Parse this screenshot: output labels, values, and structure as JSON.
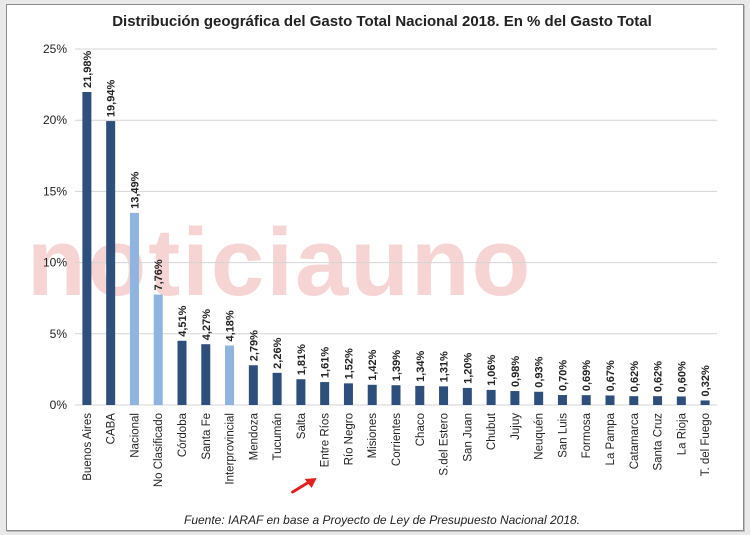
{
  "watermark": "noticiauno",
  "chart_data": {
    "type": "bar",
    "title": "Distribución geográfica del Gasto Total Nacional 2018. En % del Gasto Total",
    "source": "Fuente: IARAF en base a Proyecto de Ley de Presupuesto Nacional 2018.",
    "xlabel": "",
    "ylabel": "",
    "ylim": [
      0,
      25
    ],
    "yticks": [
      "0%",
      "5%",
      "10%",
      "15%",
      "20%",
      "25%"
    ],
    "grid": true,
    "categories": [
      "Buenos Aires",
      "CABA",
      "Nacional",
      "No Clasificado",
      "Córdoba",
      "Santa Fe",
      "Interprovincial",
      "Mendoza",
      "Tucumán",
      "Salta",
      "Entre Ríos",
      "Río Negro",
      "Misiones",
      "Corrientes",
      "Chaco",
      "S.del Estero",
      "San Juan",
      "Chubut",
      "Jujuy",
      "Neuquén",
      "San Luis",
      "Formosa",
      "La Pampa",
      "Catamarca",
      "Santa Cruz",
      "La Rioja",
      "T. del Fuego"
    ],
    "values": [
      21.98,
      19.94,
      13.49,
      7.76,
      4.51,
      4.27,
      4.18,
      2.79,
      2.26,
      1.81,
      1.61,
      1.52,
      1.42,
      1.39,
      1.34,
      1.31,
      1.2,
      1.06,
      0.98,
      0.93,
      0.7,
      0.69,
      0.67,
      0.62,
      0.62,
      0.6,
      0.32
    ],
    "value_labels": [
      "21,98%",
      "19,94%",
      "13,49%",
      "7,76%",
      "4,51%",
      "4,27%",
      "4,18%",
      "2,79%",
      "2,26%",
      "1,81%",
      "1,61%",
      "1,52%",
      "1,42%",
      "1,39%",
      "1,34%",
      "1,31%",
      "1,20%",
      "1,06%",
      "0,98%",
      "0,93%",
      "0,70%",
      "0,69%",
      "0,67%",
      "0,62%",
      "0,62%",
      "0,60%",
      "0,32%"
    ],
    "light_categories": [
      "Nacional",
      "No Clasificado",
      "Interprovincial"
    ],
    "highlighted_category": "Entre Ríos",
    "colors": {
      "dark": "#2e4f7b",
      "light": "#8fb4df",
      "arrow": "#e32020",
      "grid": "#d4d4d4"
    }
  }
}
